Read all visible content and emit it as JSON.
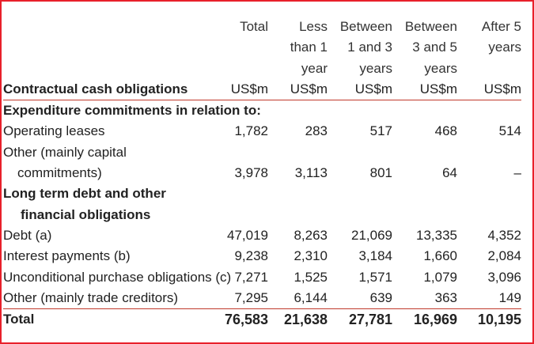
{
  "table": {
    "headers": {
      "total": [
        "Total"
      ],
      "less1": [
        "Less",
        "than 1",
        "year"
      ],
      "b13": [
        "Between",
        "1 and 3",
        "years"
      ],
      "b35": [
        "Between",
        "3 and 5",
        "years"
      ],
      "after5": [
        "After 5",
        "years"
      ]
    },
    "unit_row": {
      "label": "Contractual cash obligations",
      "units": [
        "US$m",
        "US$m",
        "US$m",
        "US$m",
        "US$m"
      ]
    },
    "section1": "Expenditure commitments in relation to:",
    "operating_leases": {
      "label": "Operating leases",
      "values": [
        "1,782",
        "283",
        "517",
        "468",
        "514"
      ]
    },
    "other_capital": {
      "label_1": "Other (mainly capital",
      "label_2": "commitments)",
      "values": [
        "3,978",
        "3,113",
        "801",
        "64",
        "–"
      ]
    },
    "section2_1": "Long term debt and other",
    "section2_2": "financial obligations",
    "debt": {
      "label": "Debt (a)",
      "values": [
        "47,019",
        "8,263",
        "21,069",
        "13,335",
        "4,352"
      ]
    },
    "interest": {
      "label": "Interest payments (b)",
      "values": [
        "9,238",
        "2,310",
        "3,184",
        "1,660",
        "2,084"
      ]
    },
    "unconditional": {
      "label": "Unconditional purchase obligations (c)",
      "values": [
        "7,271",
        "1,525",
        "1,571",
        "1,079",
        "3,096"
      ]
    },
    "other_trade": {
      "label": "Other (mainly trade creditors)",
      "values": [
        "7,295",
        "6,144",
        "639",
        "363",
        "149"
      ]
    },
    "total": {
      "label": "Total",
      "values": [
        "76,583",
        "21,638",
        "27,781",
        "16,969",
        "10,195"
      ]
    }
  },
  "colors": {
    "border": "#e8202a",
    "rule": "#c0392b"
  }
}
